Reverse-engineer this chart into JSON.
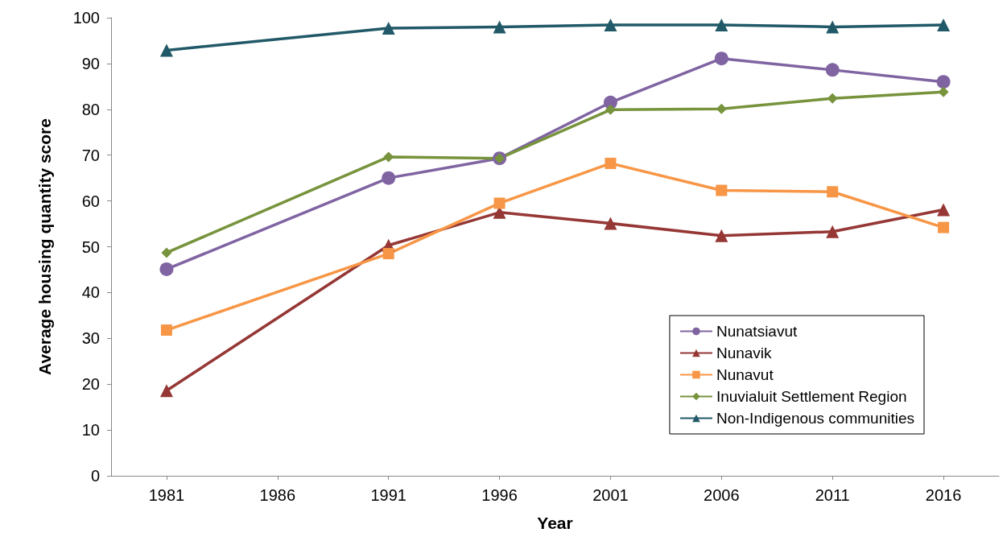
{
  "chart_data": {
    "type": "line",
    "xlabel": "Year",
    "ylabel": "Average housing quantity score",
    "x": [
      1981,
      1991,
      1996,
      2001,
      2006,
      2011,
      2016
    ],
    "xlim": [
      1978.5,
      2018.5
    ],
    "xticks": [
      1981,
      1986,
      1991,
      1996,
      2001,
      2006,
      2011,
      2016
    ],
    "ylim": [
      0,
      100
    ],
    "yticks": [
      0,
      10,
      20,
      30,
      40,
      50,
      60,
      70,
      80,
      90,
      100
    ],
    "grid": false,
    "legend": "bottom right",
    "series": [
      {
        "name": "Nunatsiavut",
        "color": "#8064a2",
        "marker": "circle",
        "values": [
          45.1,
          65.0,
          69.3,
          81.5,
          91.1,
          88.6,
          86.0
        ]
      },
      {
        "name": "Nunavik",
        "color": "#953735",
        "marker": "triangle",
        "values": [
          18.6,
          50.3,
          57.5,
          55.1,
          52.4,
          53.3,
          58.1
        ]
      },
      {
        "name": "Nunavut",
        "color": "#f79646",
        "marker": "square",
        "values": [
          31.8,
          48.5,
          59.5,
          68.2,
          62.3,
          62.0,
          54.2
        ]
      },
      {
        "name": "Inuvialuit Settlement Region",
        "color": "#77933c",
        "marker": "diamond",
        "values": [
          48.7,
          69.6,
          69.3,
          79.9,
          80.1,
          82.4,
          83.8
        ]
      },
      {
        "name": "Non-Indigenous communities",
        "color": "#215968",
        "marker": "triangle",
        "values": [
          92.9,
          97.7,
          98.0,
          98.4,
          98.4,
          98.0,
          98.4
        ]
      }
    ]
  }
}
